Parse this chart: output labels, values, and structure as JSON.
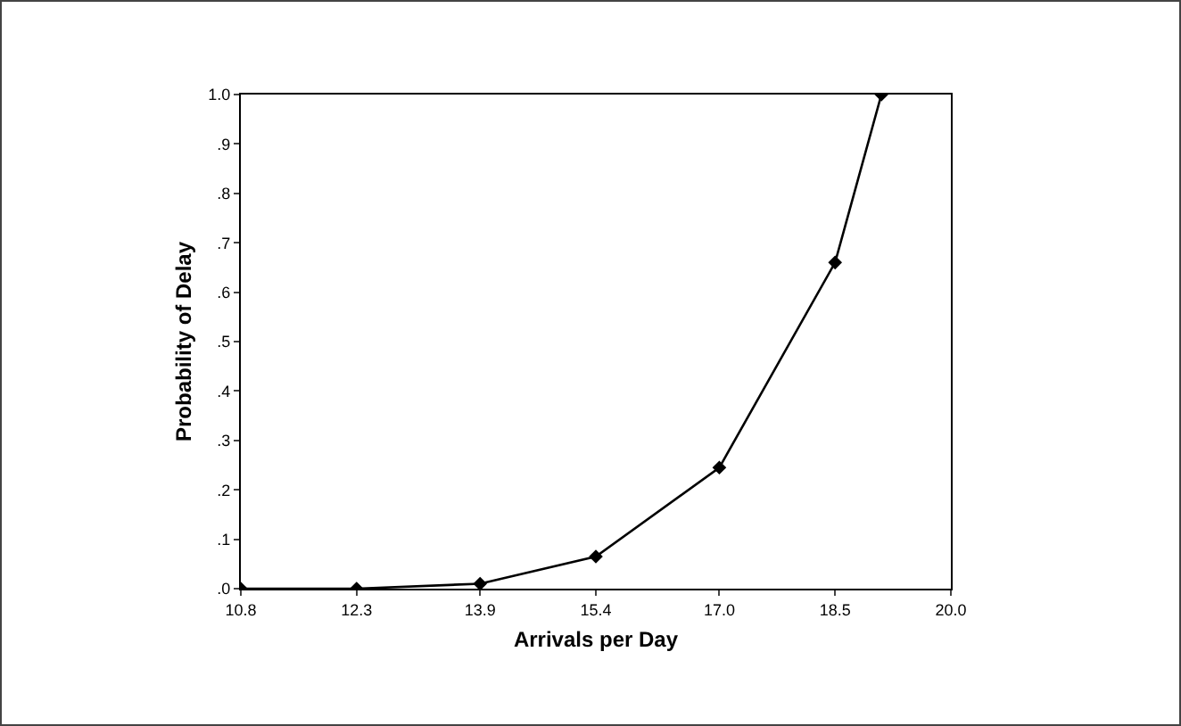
{
  "chart_data": {
    "type": "line",
    "xlabel": "Arrivals per Day",
    "ylabel": "Probability of Delay",
    "x": [
      10.8,
      12.3,
      13.9,
      15.4,
      17.0,
      18.5,
      19.1
    ],
    "series": [
      {
        "color": "#000000",
        "values": [
          0,
          0,
          0.01,
          0.065,
          0.245,
          0.66,
          1.0
        ]
      }
    ],
    "xlim": [
      10.8,
      20.0
    ],
    "xticks": [
      10.8,
      12.3,
      13.9,
      15.4,
      {
        "value": 17,
        "label": "17.0"
      },
      18.5,
      {
        "value": 20,
        "label": "20.0"
      }
    ],
    "ylim": [
      0,
      1.0
    ],
    "yticks": [
      {
        "value": 0,
        "label": ".0"
      },
      {
        "value": 0.1,
        "label": ".1"
      },
      {
        "value": 0.2,
        "label": ".2"
      },
      {
        "value": 0.3,
        "label": ".3"
      },
      {
        "value": 0.4,
        "label": ".4"
      },
      {
        "value": 0.5,
        "label": ".5"
      },
      {
        "value": 0.6,
        "label": ".6"
      },
      {
        "value": 0.7,
        "label": ".7"
      },
      {
        "value": 0.8,
        "label": ".8"
      },
      {
        "value": 0.9,
        "label": ".9"
      },
      {
        "value": 1.0,
        "label": "1.0"
      }
    ],
    "grid": false,
    "marker": "diamond",
    "line_style": "solid"
  }
}
